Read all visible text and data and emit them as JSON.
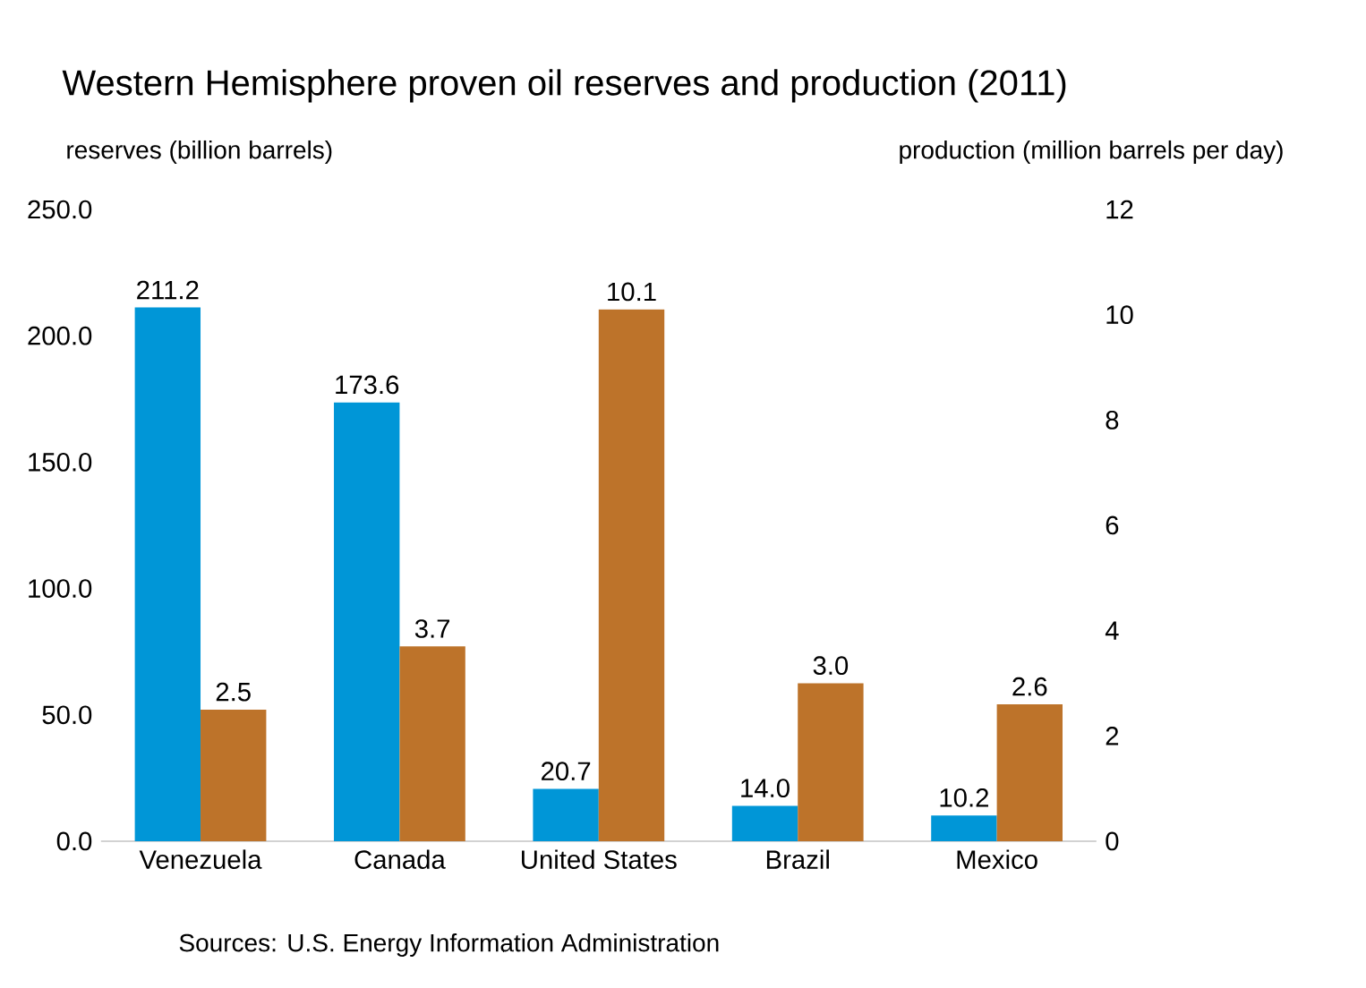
{
  "chart_data": {
    "type": "bar",
    "title": "Western Hemisphere proven oil reserves and production (2011)",
    "ylabel": "reserves (billion barrels)",
    "y2label": "production (million barrels per day)",
    "categories": [
      "Venezuela",
      "Canada",
      "United States",
      "Brazil",
      "Mexico"
    ],
    "series": [
      {
        "color": "#0096d7",
        "values": [
          211.2,
          173.6,
          20.7,
          14.0,
          10.2
        ],
        "value_labels": [
          "211.2",
          "173.6",
          "20.7",
          "14.0",
          "10.2"
        ]
      },
      {
        "color": "#bd732a",
        "axis": "y2",
        "values": [
          2.5,
          3.7,
          10.1,
          3.0,
          2.6
        ],
        "value_labels": [
          "2.5",
          "3.7",
          "10.1",
          "3.0",
          "2.6"
        ]
      }
    ],
    "ylim": [
      0,
      250
    ],
    "yticks": [
      {
        "value": 0,
        "label": "0.0"
      },
      {
        "value": 50,
        "label": "50.0"
      },
      {
        "value": 100,
        "label": "100.0"
      },
      {
        "value": 150,
        "label": "150.0"
      },
      {
        "value": 200,
        "label": "200.0"
      },
      {
        "value": 250,
        "label": "250.0"
      }
    ],
    "y2lim": [
      0,
      12
    ],
    "y2ticks": [
      0,
      2,
      4,
      6,
      8,
      10,
      12
    ],
    "grid": false,
    "annotations": [
      "Sources: U.S. Energy Information Administration"
    ]
  }
}
